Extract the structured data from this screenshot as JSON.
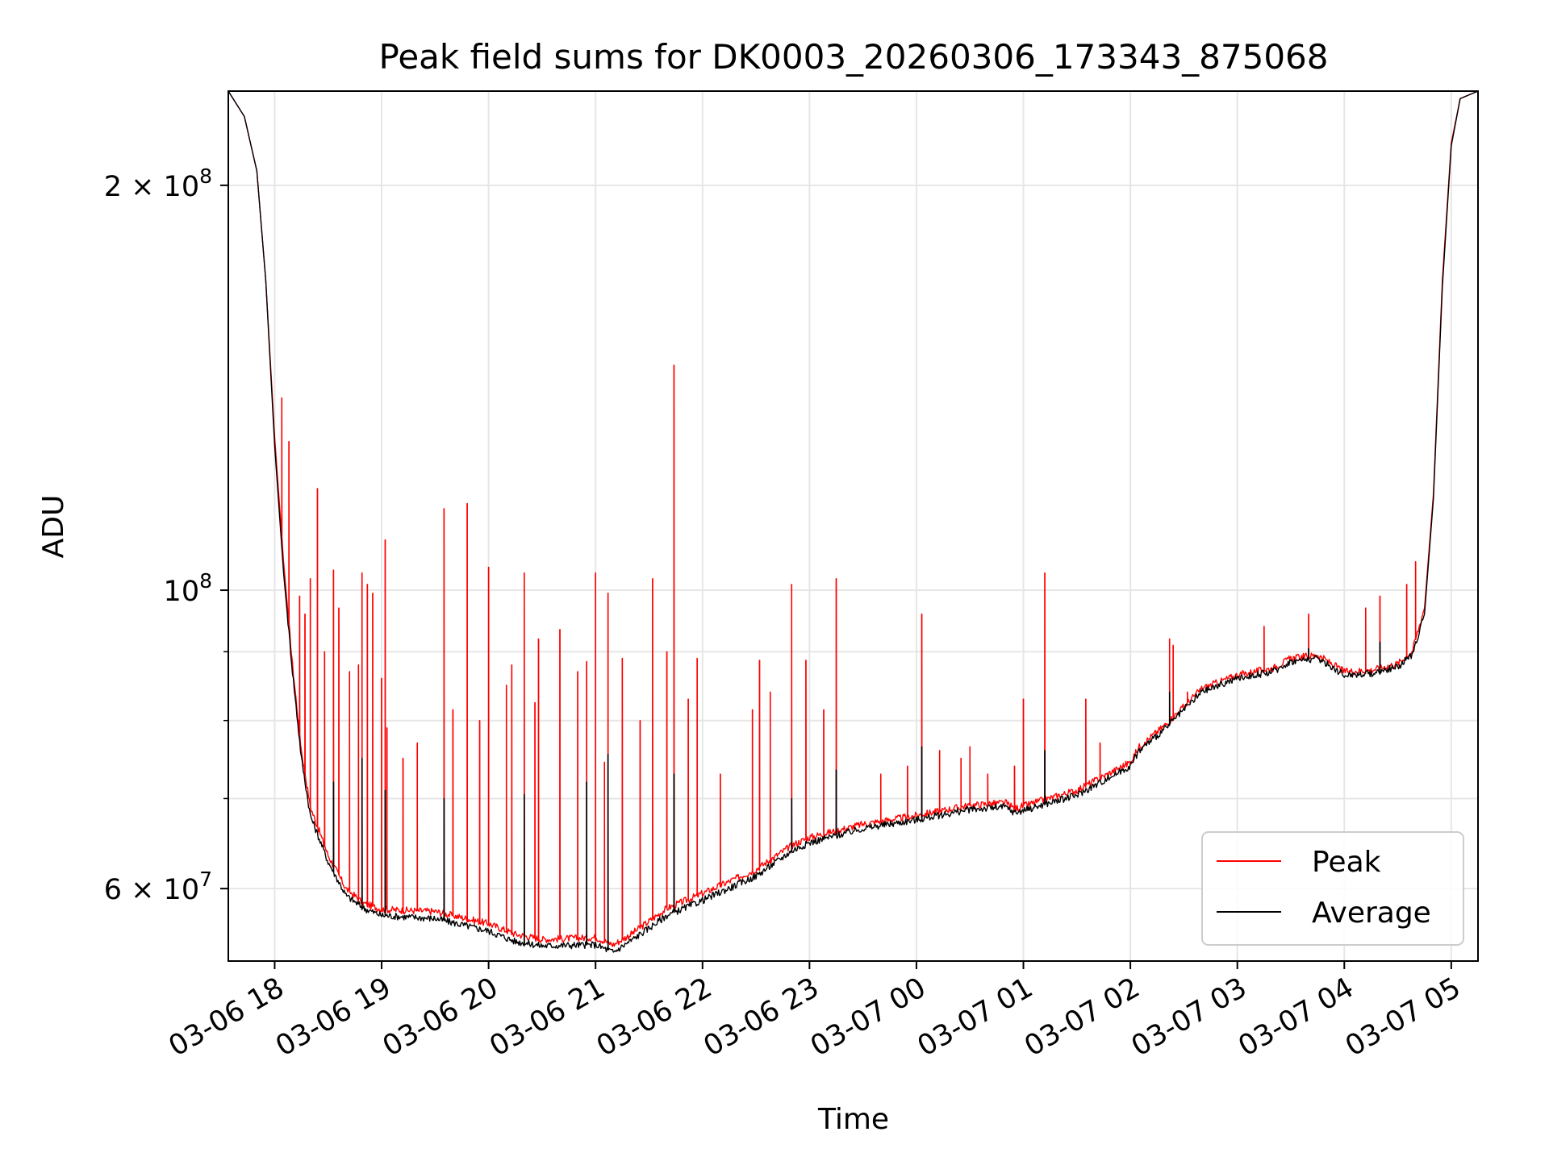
{
  "chart_data": {
    "type": "line",
    "title": "Peak field sums for DK0003_20260306_173343_875068",
    "xlabel": "Time",
    "ylabel": "ADU",
    "y_scale": "log",
    "grid": true,
    "legend_placement": "lower-right",
    "xlim": [
      "2026-03-06 17:34",
      "2026-03-07 05:15"
    ],
    "ylim": [
      53000000,
      235000000
    ],
    "x_ticks": [
      {
        "value": "2026-03-06 18:00",
        "label": "03-06 18"
      },
      {
        "value": "2026-03-06 19:00",
        "label": "03-06 19"
      },
      {
        "value": "2026-03-06 20:00",
        "label": "03-06 20"
      },
      {
        "value": "2026-03-06 21:00",
        "label": "03-06 21"
      },
      {
        "value": "2026-03-06 22:00",
        "label": "03-06 22"
      },
      {
        "value": "2026-03-06 23:00",
        "label": "03-06 23"
      },
      {
        "value": "2026-03-07 00:00",
        "label": "03-07 00"
      },
      {
        "value": "2026-03-07 01:00",
        "label": "03-07 01"
      },
      {
        "value": "2026-03-07 02:00",
        "label": "03-07 02"
      },
      {
        "value": "2026-03-07 03:00",
        "label": "03-07 03"
      },
      {
        "value": "2026-03-07 04:00",
        "label": "03-07 04"
      },
      {
        "value": "2026-03-07 05:00",
        "label": "03-07 05"
      }
    ],
    "y_major_ticks": [
      {
        "value": 60000000,
        "mantissa": "6",
        "exponent": "7"
      },
      {
        "value": 100000000,
        "mantissa": "",
        "exponent": "8"
      },
      {
        "value": 200000000,
        "mantissa": "2",
        "exponent": "8"
      }
    ],
    "y_minor_ticks": [
      70000000,
      80000000,
      90000000
    ],
    "series": [
      {
        "name": "Peak",
        "color": "#ff0000",
        "baseline": [
          [
            "2026-03-06 17:34",
            235000000
          ],
          [
            "2026-03-06 17:43",
            225000000
          ],
          [
            "2026-03-06 17:50",
            205000000
          ],
          [
            "2026-03-06 17:55",
            170000000
          ],
          [
            "2026-03-06 18:00",
            130000000
          ],
          [
            "2026-03-06 18:05",
            105000000
          ],
          [
            "2026-03-06 18:10",
            88000000
          ],
          [
            "2026-03-06 18:15",
            76000000
          ],
          [
            "2026-03-06 18:20",
            69000000
          ],
          [
            "2026-03-06 18:30",
            63500000
          ],
          [
            "2026-03-06 18:40",
            60000000
          ],
          [
            "2026-03-06 18:50",
            58500000
          ],
          [
            "2026-03-06 19:00",
            57900000
          ],
          [
            "2026-03-06 19:30",
            57700000
          ],
          [
            "2026-03-06 20:00",
            56500000
          ],
          [
            "2026-03-06 20:15",
            55500000
          ],
          [
            "2026-03-06 20:30",
            55000000
          ],
          [
            "2026-03-06 21:00",
            55200000
          ],
          [
            "2026-03-06 21:10",
            54500000
          ],
          [
            "2026-03-06 21:20",
            55500000
          ],
          [
            "2026-03-06 21:40",
            58000000
          ],
          [
            "2026-03-06 22:00",
            59500000
          ],
          [
            "2026-03-06 22:30",
            62000000
          ],
          [
            "2026-03-06 22:50",
            64600000
          ],
          [
            "2026-03-06 23:00",
            65500000
          ],
          [
            "2026-03-06 23:30",
            67000000
          ],
          [
            "2026-03-07 00:00",
            68000000
          ],
          [
            "2026-03-07 00:30",
            69200000
          ],
          [
            "2026-03-07 00:50",
            69500000
          ],
          [
            "2026-03-07 00:55",
            68800000
          ],
          [
            "2026-03-07 01:30",
            71000000
          ],
          [
            "2026-03-07 02:00",
            74500000
          ],
          [
            "2026-03-07 02:05",
            76500000
          ],
          [
            "2026-03-07 02:20",
            79500000
          ],
          [
            "2026-03-07 02:40",
            84500000
          ],
          [
            "2026-03-07 03:00",
            86500000
          ],
          [
            "2026-03-07 03:20",
            87500000
          ],
          [
            "2026-03-07 03:30",
            89000000
          ],
          [
            "2026-03-07 03:45",
            89500000
          ],
          [
            "2026-03-07 04:00",
            87000000
          ],
          [
            "2026-03-07 04:15",
            87200000
          ],
          [
            "2026-03-07 04:30",
            88200000
          ],
          [
            "2026-03-07 04:38",
            90000000
          ],
          [
            "2026-03-07 04:45",
            97000000
          ],
          [
            "2026-03-07 04:50",
            118000000
          ],
          [
            "2026-03-07 04:55",
            170000000
          ],
          [
            "2026-03-07 05:00",
            215000000
          ],
          [
            "2026-03-07 05:05",
            232000000
          ],
          [
            "2026-03-07 05:15",
            235000000
          ]
        ],
        "spikes": [
          [
            "2026-03-06 18:04",
            139000000
          ],
          [
            "2026-03-06 18:08",
            129000000
          ],
          [
            "2026-03-06 18:14",
            99000000
          ],
          [
            "2026-03-06 18:17",
            96000000
          ],
          [
            "2026-03-06 18:20",
            102000000
          ],
          [
            "2026-03-06 18:24",
            119000000
          ],
          [
            "2026-03-06 18:28",
            90000000
          ],
          [
            "2026-03-06 18:33",
            103500000
          ],
          [
            "2026-03-06 18:36",
            97000000
          ],
          [
            "2026-03-06 18:42",
            87000000
          ],
          [
            "2026-03-06 18:47",
            88000000
          ],
          [
            "2026-03-06 18:49",
            103000000
          ],
          [
            "2026-03-06 18:52",
            101000000
          ],
          [
            "2026-03-06 18:55",
            99500000
          ],
          [
            "2026-03-06 19:00",
            86000000
          ],
          [
            "2026-03-06 19:03",
            79000000
          ],
          [
            "2026-03-06 19:02",
            109000000
          ],
          [
            "2026-03-06 19:12",
            75000000
          ],
          [
            "2026-03-06 19:20",
            77000000
          ],
          [
            "2026-03-06 19:35",
            115000000
          ],
          [
            "2026-03-06 19:40",
            81500000
          ],
          [
            "2026-03-06 19:48",
            116000000
          ],
          [
            "2026-03-06 19:55",
            80000000
          ],
          [
            "2026-03-06 20:00",
            104000000
          ],
          [
            "2026-03-06 20:10",
            85000000
          ],
          [
            "2026-03-06 20:13",
            88000000
          ],
          [
            "2026-03-06 20:20",
            103000000
          ],
          [
            "2026-03-06 20:26",
            82500000
          ],
          [
            "2026-03-06 20:28",
            92000000
          ],
          [
            "2026-03-06 20:40",
            93500000
          ],
          [
            "2026-03-06 20:50",
            87000000
          ],
          [
            "2026-03-06 20:55",
            88500000
          ],
          [
            "2026-03-06 21:00",
            103000000
          ],
          [
            "2026-03-06 21:05",
            74500000
          ],
          [
            "2026-03-06 21:07",
            99500000
          ],
          [
            "2026-03-06 21:15",
            89000000
          ],
          [
            "2026-03-06 21:25",
            80000000
          ],
          [
            "2026-03-06 21:32",
            102000000
          ],
          [
            "2026-03-06 21:40",
            90000000
          ],
          [
            "2026-03-06 21:44",
            147000000
          ],
          [
            "2026-03-06 21:52",
            83000000
          ],
          [
            "2026-03-06 21:57",
            89000000
          ],
          [
            "2026-03-06 22:10",
            73000000
          ],
          [
            "2026-03-06 22:28",
            81500000
          ],
          [
            "2026-03-06 22:32",
            88700000
          ],
          [
            "2026-03-06 22:38",
            84000000
          ],
          [
            "2026-03-06 22:50",
            101000000
          ],
          [
            "2026-03-06 22:58",
            88700000
          ],
          [
            "2026-03-06 23:08",
            81500000
          ],
          [
            "2026-03-06 23:15",
            102000000
          ],
          [
            "2026-03-06 23:40",
            73000000
          ],
          [
            "2026-03-06 23:55",
            74000000
          ],
          [
            "2026-03-07 00:03",
            96000000
          ],
          [
            "2026-03-07 00:13",
            76000000
          ],
          [
            "2026-03-07 00:25",
            75000000
          ],
          [
            "2026-03-07 00:30",
            76500000
          ],
          [
            "2026-03-07 00:40",
            73000000
          ],
          [
            "2026-03-07 00:55",
            74000000
          ],
          [
            "2026-03-07 01:00",
            83000000
          ],
          [
            "2026-03-07 01:12",
            103000000
          ],
          [
            "2026-03-07 01:35",
            83000000
          ],
          [
            "2026-03-07 01:43",
            77000000
          ],
          [
            "2026-03-07 02:08",
            77000000
          ],
          [
            "2026-03-07 02:22",
            92000000
          ],
          [
            "2026-03-07 02:24",
            91000000
          ],
          [
            "2026-03-07 02:32",
            84000000
          ],
          [
            "2026-03-07 03:15",
            94000000
          ],
          [
            "2026-03-07 03:40",
            96000000
          ],
          [
            "2026-03-07 04:12",
            97000000
          ],
          [
            "2026-03-07 04:20",
            99000000
          ],
          [
            "2026-03-07 04:35",
            101000000
          ],
          [
            "2026-03-07 04:40",
            105000000
          ]
        ]
      },
      {
        "name": "Average",
        "color": "#000000",
        "baseline": [
          [
            "2026-03-06 17:34",
            235000000
          ],
          [
            "2026-03-06 17:43",
            225000000
          ],
          [
            "2026-03-06 17:50",
            205000000
          ],
          [
            "2026-03-06 17:55",
            170000000
          ],
          [
            "2026-03-06 18:00",
            128000000
          ],
          [
            "2026-03-06 18:05",
            103000000
          ],
          [
            "2026-03-06 18:10",
            87000000
          ],
          [
            "2026-03-06 18:15",
            75000000
          ],
          [
            "2026-03-06 18:20",
            68000000
          ],
          [
            "2026-03-06 18:30",
            62800000
          ],
          [
            "2026-03-06 18:40",
            59300000
          ],
          [
            "2026-03-06 18:50",
            58000000
          ],
          [
            "2026-03-06 19:00",
            57300000
          ],
          [
            "2026-03-06 19:30",
            57000000
          ],
          [
            "2026-03-06 20:00",
            55800000
          ],
          [
            "2026-03-06 20:15",
            54800000
          ],
          [
            "2026-03-06 20:30",
            54400000
          ],
          [
            "2026-03-06 21:00",
            54500000
          ],
          [
            "2026-03-06 21:10",
            53800000
          ],
          [
            "2026-03-06 21:20",
            54900000
          ],
          [
            "2026-03-06 21:40",
            57300000
          ],
          [
            "2026-03-06 22:00",
            58800000
          ],
          [
            "2026-03-06 22:30",
            61300000
          ],
          [
            "2026-03-06 22:50",
            64000000
          ],
          [
            "2026-03-06 23:00",
            64900000
          ],
          [
            "2026-03-06 23:30",
            66500000
          ],
          [
            "2026-03-07 00:00",
            67500000
          ],
          [
            "2026-03-07 00:30",
            68700000
          ],
          [
            "2026-03-07 00:50",
            69000000
          ],
          [
            "2026-03-07 00:55",
            68300000
          ],
          [
            "2026-03-07 01:30",
            70400000
          ],
          [
            "2026-03-07 02:00",
            74000000
          ],
          [
            "2026-03-07 02:05",
            76000000
          ],
          [
            "2026-03-07 02:20",
            79000000
          ],
          [
            "2026-03-07 02:40",
            84000000
          ],
          [
            "2026-03-07 03:00",
            86000000
          ],
          [
            "2026-03-07 03:20",
            87000000
          ],
          [
            "2026-03-07 03:30",
            88500000
          ],
          [
            "2026-03-07 03:45",
            89000000
          ],
          [
            "2026-03-07 04:00",
            86500000
          ],
          [
            "2026-03-07 04:15",
            86700000
          ],
          [
            "2026-03-07 04:30",
            87700000
          ],
          [
            "2026-03-07 04:38",
            89500000
          ],
          [
            "2026-03-07 04:45",
            96000000
          ],
          [
            "2026-03-07 04:50",
            117000000
          ],
          [
            "2026-03-07 04:55",
            168000000
          ],
          [
            "2026-03-07 05:00",
            214000000
          ],
          [
            "2026-03-07 05:05",
            232000000
          ],
          [
            "2026-03-07 05:15",
            235000000
          ]
        ],
        "spikes": [
          [
            "2026-03-06 18:33",
            72000000
          ],
          [
            "2026-03-06 18:49",
            75000000
          ],
          [
            "2026-03-06 19:02",
            71000000
          ],
          [
            "2026-03-06 19:35",
            70000000
          ],
          [
            "2026-03-06 20:20",
            70500000
          ],
          [
            "2026-03-06 20:55",
            72000000
          ],
          [
            "2026-03-06 21:07",
            75500000
          ],
          [
            "2026-03-06 21:44",
            73000000
          ],
          [
            "2026-03-06 22:50",
            70000000
          ],
          [
            "2026-03-06 23:15",
            73500000
          ],
          [
            "2026-03-07 00:03",
            76500000
          ],
          [
            "2026-03-07 01:12",
            76000000
          ],
          [
            "2026-03-07 02:22",
            84000000
          ],
          [
            "2026-03-07 03:40",
            90500000
          ],
          [
            "2026-03-07 04:20",
            91500000
          ]
        ]
      }
    ]
  }
}
